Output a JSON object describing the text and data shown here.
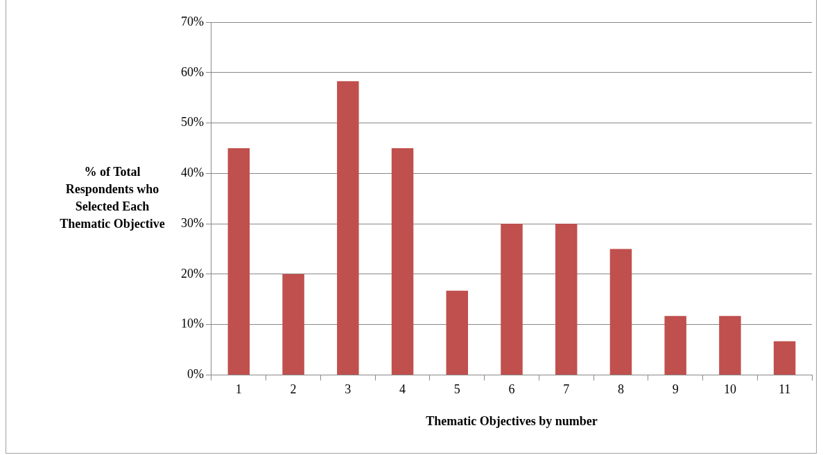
{
  "chart_data": {
    "type": "bar",
    "xlabel": "Thematic Objectives by number",
    "ylabel": "% of Total\nRespondents who\nSelected Each\nThematic Objective",
    "categories": [
      "1",
      "2",
      "3",
      "4",
      "5",
      "6",
      "7",
      "8",
      "9",
      "10",
      "11"
    ],
    "values": [
      45,
      20,
      58.3,
      45,
      16.7,
      30,
      30,
      25,
      11.7,
      11.7,
      6.7
    ],
    "color": "#c0504d",
    "ylim": [
      0,
      70
    ],
    "yticks": [
      {
        "value": 0,
        "label": "0%"
      },
      {
        "value": 10,
        "label": "10%"
      },
      {
        "value": 20,
        "label": "20%"
      },
      {
        "value": 30,
        "label": "30%"
      },
      {
        "value": 40,
        "label": "40%"
      },
      {
        "value": 50,
        "label": "50%"
      },
      {
        "value": 60,
        "label": "60%"
      },
      {
        "value": 70,
        "label": "70%"
      }
    ],
    "grid": "y",
    "legend": false
  }
}
